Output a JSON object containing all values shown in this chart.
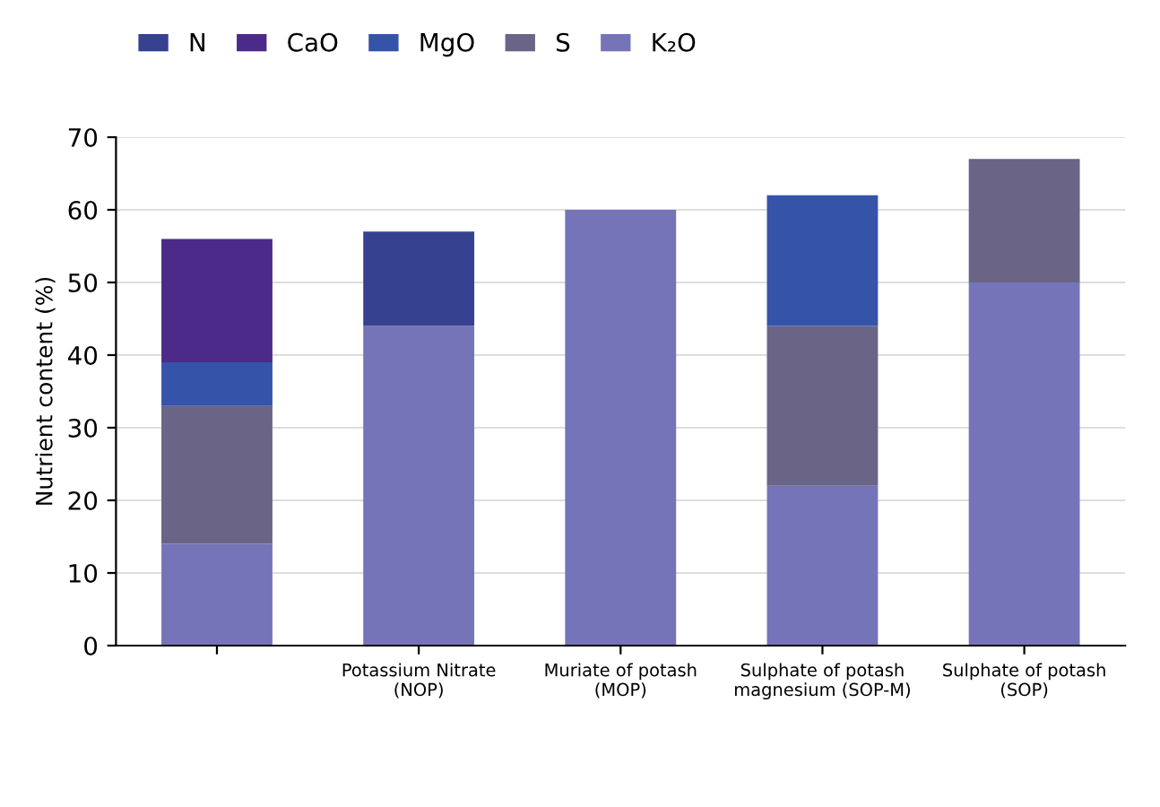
{
  "chart_data": {
    "type": "bar",
    "stacked": true,
    "ylabel": "Nutrient content (%)",
    "categories": [
      null,
      "Potassium Nitrate (NOP)",
      "Muriate of potash (MOP)",
      "Sulphate of potash magnesium (SOP-M)",
      "Sulphate of potash (SOP)"
    ],
    "series": [
      {
        "name": "K₂O",
        "color": "#7674b8",
        "values": [
          14,
          44,
          60,
          22,
          50
        ]
      },
      {
        "name": "S",
        "color": "#6a6487",
        "values": [
          19,
          null,
          null,
          22,
          17
        ]
      },
      {
        "name": "MgO",
        "color": "#3553a8",
        "values": [
          6,
          null,
          null,
          18,
          null
        ]
      },
      {
        "name": "CaO",
        "color": "#4b2a8a",
        "values": [
          17,
          null,
          null,
          null,
          null
        ]
      },
      {
        "name": "N",
        "color": "#36418f",
        "values": [
          null,
          13,
          null,
          null,
          null
        ]
      }
    ],
    "ylim": [
      0,
      70
    ],
    "yticks": [
      0,
      10,
      20,
      30,
      40,
      50,
      60,
      70
    ],
    "grid": "y",
    "legend": "top left"
  }
}
